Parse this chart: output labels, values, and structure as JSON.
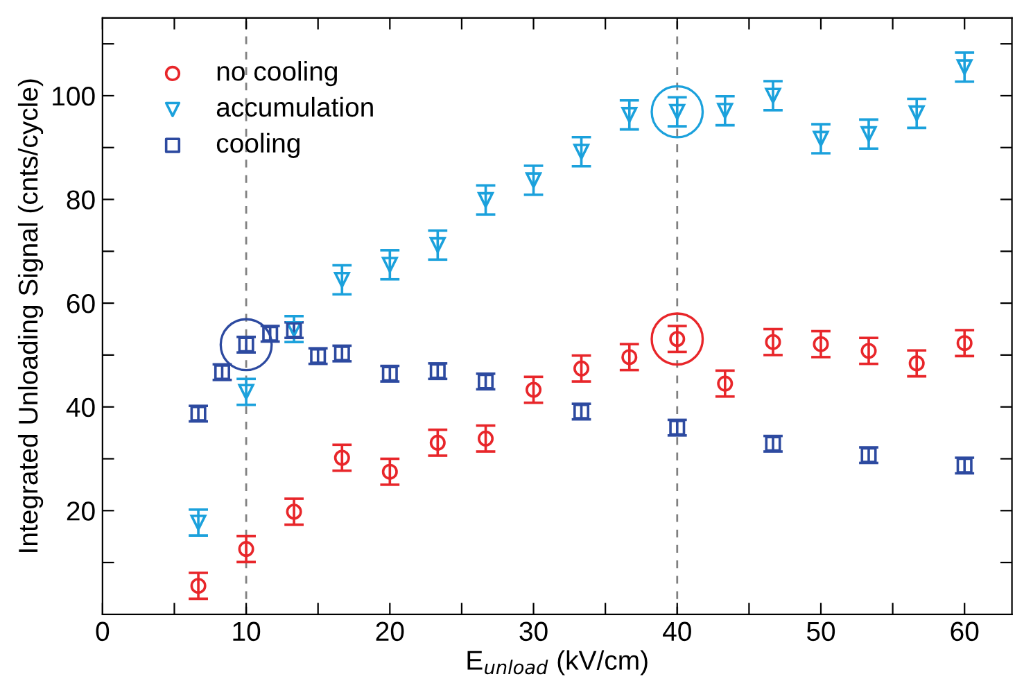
{
  "chart_data": {
    "type": "scatter",
    "xlabel": "E$_{unload}$ (kV/cm)",
    "ylabel": "Integrated Unloading Signal (cnts/cycle)",
    "xlim": [
      0,
      63.3
    ],
    "ylim": [
      0,
      115
    ],
    "xticks": [
      0,
      {
        "value": 5,
        "label": null
      },
      10,
      {
        "value": 15,
        "label": null
      },
      20,
      {
        "value": 25,
        "label": null
      },
      30,
      {
        "value": 35,
        "label": null
      },
      40,
      {
        "value": 45,
        "label": null
      },
      50,
      {
        "value": 55,
        "label": null
      },
      60
    ],
    "yticks": [
      {
        "value": 10,
        "label": null
      },
      20,
      {
        "value": 30,
        "label": null
      },
      40,
      {
        "value": 50,
        "label": null
      },
      60,
      {
        "value": 70,
        "label": null
      },
      80,
      {
        "value": 90,
        "label": null
      },
      100,
      {
        "value": 110,
        "label": null
      }
    ],
    "grid": false,
    "legend": "top left",
    "ref_lines": [
      {
        "axis": "x",
        "value": 10,
        "color": "#808080",
        "line_style": "dashed"
      },
      {
        "axis": "x",
        "value": 40,
        "color": "#808080",
        "line_style": "dashed"
      }
    ],
    "series": [
      {
        "name": "no cooling",
        "color": "#e8262a",
        "marker": "circle",
        "x": [
          6.67,
          10,
          13.33,
          16.67,
          20,
          23.33,
          26.67,
          30,
          33.33,
          36.67,
          40,
          43.33,
          46.67,
          50,
          53.33,
          56.67,
          60
        ],
        "values": [
          5.5,
          12.6,
          19.8,
          30.2,
          27.5,
          33.1,
          33.9,
          43.3,
          47.4,
          49.6,
          53.1,
          44.5,
          52.5,
          52.1,
          50.8,
          48.4,
          52.3
        ],
        "errors": [
          2.5,
          2.5,
          2.5,
          2.5,
          2.5,
          2.5,
          2.5,
          2.5,
          2.5,
          2.5,
          2.5,
          2.5,
          2.5,
          2.5,
          2.5,
          2.5,
          2.5
        ]
      },
      {
        "name": "accumulation",
        "color": "#1ba1dc",
        "marker": "triangle",
        "x": [
          6.67,
          10,
          13.33,
          16.67,
          20,
          23.33,
          26.67,
          30,
          33.33,
          36.67,
          40,
          43.33,
          46.67,
          50,
          53.33,
          56.67,
          60
        ],
        "values": [
          17.7,
          42.9,
          55.0,
          64.5,
          67.4,
          71.2,
          79.9,
          83.7,
          89.2,
          96.3,
          96.9,
          97.1,
          100,
          91.7,
          92.6,
          96.6,
          105.5
        ],
        "errors": [
          2.5,
          2.5,
          2.5,
          2.8,
          2.8,
          2.8,
          2.8,
          2.8,
          2.8,
          2.8,
          2.8,
          2.8,
          2.8,
          2.8,
          2.8,
          2.8,
          2.8
        ]
      },
      {
        "name": "cooling",
        "color": "#2d4aa0",
        "marker": "square",
        "x": [
          6.67,
          8.33,
          10,
          11.67,
          13.33,
          15,
          16.67,
          20,
          23.33,
          26.67,
          33.33,
          40,
          46.67,
          53.33,
          60
        ],
        "values": [
          38.7,
          46.7,
          52.0,
          54.1,
          54.8,
          49.8,
          50.3,
          46.4,
          46.9,
          44.9,
          39.1,
          36.0,
          32.9,
          30.7,
          28.7
        ],
        "errors": [
          1.5,
          1.5,
          1.5,
          1.5,
          1.5,
          1.5,
          1.5,
          1.5,
          1.5,
          1.5,
          1.5,
          1.5,
          1.5,
          1.5,
          1.5
        ]
      },
      {
        "color": "#2d4aa0",
        "x": [
          10
        ],
        "values": [
          52.0
        ]
      },
      {
        "color": "#1ba1dc",
        "x": [
          40
        ],
        "values": [
          96.9
        ]
      },
      {
        "color": "#e8262a",
        "x": [
          40
        ],
        "values": [
          53.1
        ]
      }
    ]
  }
}
